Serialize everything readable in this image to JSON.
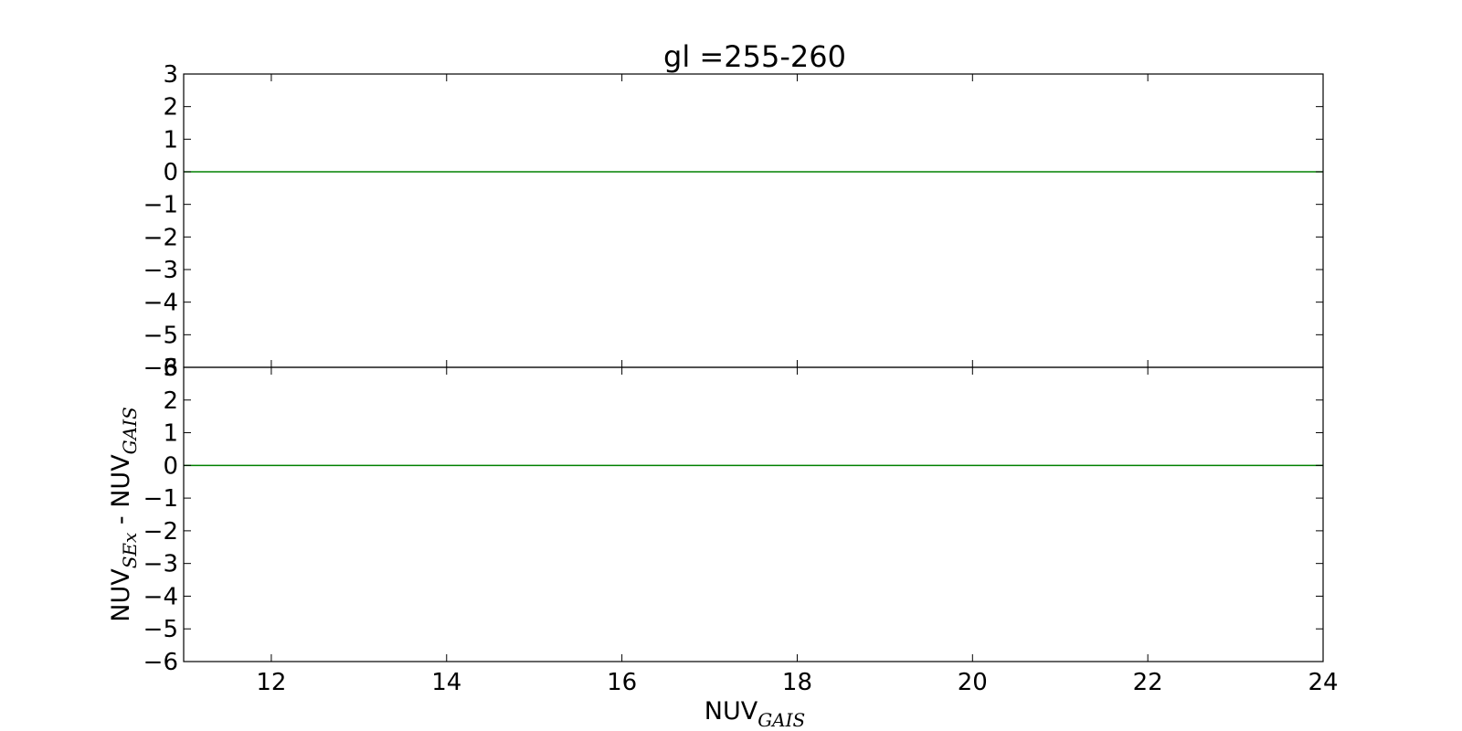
{
  "chart_data": {
    "type": "line",
    "title": "gl =255-260",
    "xlabel": {
      "main": "NUV",
      "sub": "GAIS"
    },
    "ylabel": {
      "main1": "NUV",
      "sub1": "SEx",
      "sep": " - ",
      "main2": "NUV",
      "sub2": "GAIS"
    },
    "xlim": [
      11,
      24
    ],
    "xticks": [
      12,
      14,
      16,
      18,
      20,
      22,
      24
    ],
    "panels": [
      {
        "name": "top",
        "ylim": [
          -6,
          3
        ],
        "yticks": [
          3,
          2,
          1,
          0,
          -1,
          -2,
          -3,
          -4,
          -5,
          -6
        ],
        "series": [
          {
            "x": [
              11,
              24
            ],
            "y": [
              0,
              0
            ],
            "color": "#008000"
          }
        ]
      },
      {
        "name": "bottom",
        "ylim": [
          -6,
          3
        ],
        "yticks": [
          3,
          2,
          1,
          0,
          -1,
          -2,
          -3,
          -4,
          -5,
          -6
        ],
        "series": [
          {
            "x": [
              11,
              24
            ],
            "y": [
              0,
              0
            ],
            "color": "#008000"
          }
        ]
      }
    ],
    "grid": false,
    "legend": "none"
  }
}
